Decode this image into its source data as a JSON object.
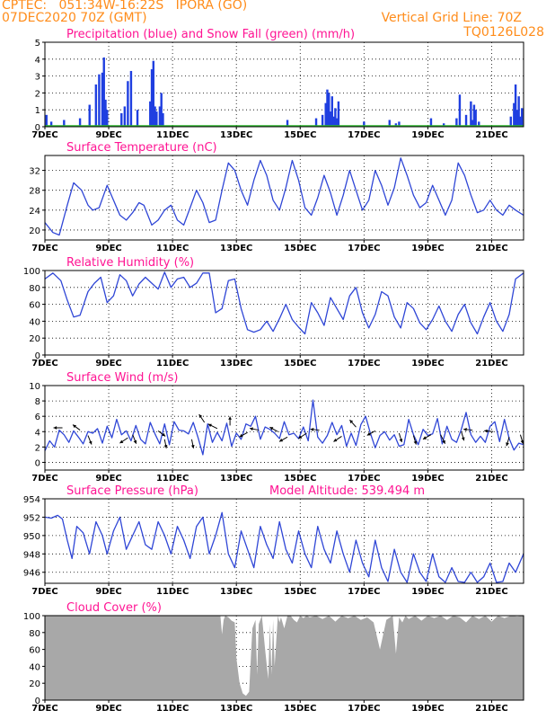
{
  "header": {
    "station": "CPTEC:   051:34W-16:22S   IPORA (GO)",
    "run": "07DEC2020 70Z (GMT)",
    "grid_note": "Vertical Grid Line: 70Z",
    "model": "TQ0126L028"
  },
  "colors": {
    "header": "#ff8c1a",
    "title": "#ff1493",
    "precip": "#1f3fe0",
    "snow": "#2db82d",
    "line": "#2f46d6",
    "cloud": "#a8a8a8"
  },
  "chart_data": [
    {
      "id": "precip",
      "type": "bar",
      "title": "Precipitation (blue) and Snow Fall (green) (mm/h)",
      "ylim": [
        0,
        5
      ],
      "yticks": [
        "0",
        "1",
        "2",
        "3",
        "4",
        "5"
      ],
      "xlim": [
        0,
        15
      ],
      "xticks": [
        "7DEC",
        "9DEC",
        "11DEC",
        "13DEC",
        "15DEC",
        "17DEC",
        "19DEC",
        "21DEC"
      ],
      "x": [
        0.05,
        0.2,
        0.6,
        1.1,
        1.4,
        1.6,
        1.7,
        1.8,
        1.85,
        1.9,
        1.95,
        2.4,
        2.5,
        2.6,
        2.7,
        2.9,
        3.3,
        3.35,
        3.4,
        3.45,
        3.5,
        3.6,
        3.65,
        3.7,
        7.6,
        8.5,
        8.7,
        8.8,
        8.85,
        8.9,
        8.95,
        9.0,
        9.05,
        9.1,
        9.15,
        9.2,
        10.0,
        10.8,
        11.0,
        11.1,
        12.1,
        12.5,
        12.9,
        13.0,
        13.2,
        13.35,
        13.4,
        13.45,
        13.5,
        13.6,
        14.6,
        14.7,
        14.75,
        14.8,
        14.85,
        14.9,
        14.95
      ],
      "values": [
        0.7,
        0.3,
        0.4,
        0.5,
        1.3,
        2.5,
        3.1,
        3.2,
        4.1,
        1.6,
        1.0,
        0.8,
        1.2,
        2.7,
        3.3,
        1.0,
        1.5,
        3.4,
        3.9,
        1.2,
        0.9,
        1.2,
        2.0,
        0.8,
        0.4,
        0.5,
        0.7,
        1.4,
        2.2,
        2.0,
        0.9,
        1.8,
        0.6,
        1.1,
        0.5,
        1.5,
        0.3,
        0.4,
        0.2,
        0.3,
        0.5,
        0.2,
        0.5,
        1.9,
        0.7,
        1.5,
        0.4,
        1.3,
        1.0,
        0.3,
        0.6,
        1.4,
        2.5,
        1.0,
        1.8,
        0.6,
        1.1
      ],
      "snow": 0
    },
    {
      "id": "temperature",
      "type": "line",
      "title": "Surface Temperature (nC)",
      "ylim": [
        18,
        35
      ],
      "yticks": [
        "20",
        "24",
        "28",
        "32"
      ],
      "xlim": [
        0,
        15
      ],
      "xticks": [
        "7DEC",
        "9DEC",
        "11DEC",
        "13DEC",
        "15DEC",
        "17DEC",
        "19DEC",
        "21DEC"
      ],
      "x": [
        0,
        0.25,
        0.45,
        0.7,
        0.9,
        1.15,
        1.35,
        1.5,
        1.7,
        1.95,
        2.15,
        2.35,
        2.55,
        2.75,
        2.95,
        3.1,
        3.35,
        3.55,
        3.75,
        3.95,
        4.15,
        4.35,
        4.55,
        4.75,
        4.95,
        5.15,
        5.35,
        5.55,
        5.75,
        5.95,
        6.15,
        6.35,
        6.55,
        6.75,
        6.95,
        7.15,
        7.35,
        7.55,
        7.75,
        7.95,
        8.15,
        8.35,
        8.55,
        8.75,
        8.95,
        9.15,
        9.35,
        9.55,
        9.75,
        9.95,
        10.15,
        10.35,
        10.55,
        10.75,
        10.95,
        11.15,
        11.35,
        11.55,
        11.75,
        11.95,
        12.15,
        12.35,
        12.55,
        12.75,
        12.95,
        13.15,
        13.35,
        13.55,
        13.75,
        13.95,
        14.15,
        14.35,
        14.55,
        14.75,
        15
      ],
      "values": [
        21.5,
        19.5,
        19.0,
        25.0,
        29.5,
        28.0,
        25.0,
        24.0,
        24.5,
        29.0,
        26.0,
        23.0,
        22.0,
        23.5,
        25.5,
        25.0,
        21.0,
        22.0,
        24.0,
        25.0,
        22.0,
        21.0,
        24.5,
        28.0,
        25.5,
        21.5,
        22.0,
        28.0,
        33.5,
        32.0,
        28.0,
        25.0,
        30.0,
        34.0,
        31.0,
        26.0,
        24.0,
        28.5,
        34.0,
        30.0,
        24.5,
        23.0,
        26.5,
        31.0,
        27.5,
        23.0,
        27.0,
        32.0,
        28.0,
        24.0,
        26.0,
        32.0,
        29.0,
        25.0,
        28.5,
        34.5,
        31.0,
        27.0,
        24.5,
        25.5,
        29.0,
        26.0,
        23.0,
        26.0,
        33.5,
        31.0,
        27.0,
        23.5,
        24.0,
        26.0,
        24.0,
        23.0,
        25.0,
        24.0,
        23.0
      ]
    },
    {
      "id": "humidity",
      "type": "line",
      "title": "Relative Humidity (%)",
      "ylim": [
        0,
        100
      ],
      "yticks": [
        "0",
        "20",
        "40",
        "60",
        "80",
        "100"
      ],
      "xlim": [
        0,
        15
      ],
      "xticks": [
        "7DEC",
        "9DEC",
        "11DEC",
        "13DEC",
        "15DEC",
        "17DEC",
        "19DEC",
        "21DEC"
      ],
      "x": [
        0,
        0.25,
        0.5,
        0.7,
        0.9,
        1.1,
        1.35,
        1.55,
        1.75,
        1.95,
        2.15,
        2.35,
        2.55,
        2.75,
        2.95,
        3.15,
        3.35,
        3.55,
        3.75,
        3.95,
        4.15,
        4.35,
        4.55,
        4.75,
        4.95,
        5.15,
        5.35,
        5.55,
        5.75,
        5.95,
        6.15,
        6.35,
        6.55,
        6.75,
        6.95,
        7.15,
        7.35,
        7.55,
        7.75,
        7.95,
        8.15,
        8.35,
        8.55,
        8.75,
        8.95,
        9.15,
        9.35,
        9.55,
        9.75,
        9.95,
        10.15,
        10.35,
        10.55,
        10.75,
        10.95,
        11.15,
        11.35,
        11.55,
        11.75,
        11.95,
        12.15,
        12.35,
        12.55,
        12.75,
        12.95,
        13.15,
        13.35,
        13.55,
        13.75,
        13.95,
        14.15,
        14.35,
        14.55,
        14.75,
        15
      ],
      "values": [
        90,
        97,
        88,
        65,
        45,
        47,
        75,
        85,
        92,
        62,
        70,
        95,
        88,
        70,
        84,
        92,
        85,
        78,
        98,
        80,
        90,
        92,
        80,
        85,
        97,
        97,
        50,
        55,
        88,
        90,
        55,
        30,
        27,
        30,
        40,
        28,
        43,
        60,
        42,
        33,
        25,
        62,
        50,
        35,
        68,
        55,
        42,
        70,
        80,
        50,
        32,
        48,
        75,
        70,
        45,
        32,
        62,
        55,
        38,
        30,
        42,
        58,
        40,
        28,
        48,
        60,
        38,
        25,
        45,
        62,
        40,
        28,
        48,
        90,
        97
      ]
    },
    {
      "id": "wind",
      "type": "line",
      "title": "Surface Wind (m/s)",
      "ylim": [
        -1,
        10
      ],
      "yticks": [
        "0",
        "2",
        "4",
        "6",
        "8",
        "10"
      ],
      "xlim": [
        0,
        15
      ],
      "xticks": [
        "7DEC",
        "9DEC",
        "11DEC",
        "13DEC",
        "15DEC",
        "17DEC",
        "19DEC",
        "21DEC"
      ],
      "x": [
        0,
        0.15,
        0.3,
        0.45,
        0.6,
        0.75,
        0.9,
        1.05,
        1.2,
        1.35,
        1.5,
        1.65,
        1.8,
        1.95,
        2.1,
        2.25,
        2.4,
        2.55,
        2.7,
        2.85,
        3.0,
        3.15,
        3.3,
        3.45,
        3.6,
        3.75,
        3.9,
        4.05,
        4.2,
        4.35,
        4.5,
        4.65,
        4.8,
        4.95,
        5.1,
        5.25,
        5.4,
        5.55,
        5.7,
        5.85,
        6.0,
        6.15,
        6.3,
        6.45,
        6.6,
        6.75,
        6.9,
        7.05,
        7.2,
        7.35,
        7.5,
        7.65,
        7.8,
        7.95,
        8.1,
        8.25,
        8.4,
        8.55,
        8.7,
        8.85,
        9.0,
        9.15,
        9.3,
        9.45,
        9.6,
        9.75,
        9.9,
        10.05,
        10.2,
        10.35,
        10.5,
        10.65,
        10.8,
        10.95,
        11.1,
        11.25,
        11.4,
        11.55,
        11.7,
        11.85,
        12.0,
        12.15,
        12.3,
        12.45,
        12.6,
        12.75,
        12.9,
        13.05,
        13.2,
        13.35,
        13.5,
        13.65,
        13.8,
        13.95,
        14.1,
        14.25,
        14.4,
        14.55,
        14.7,
        14.85,
        15
      ],
      "values": [
        1.5,
        2.8,
        2.0,
        4.2,
        3.6,
        2.6,
        4.1,
        3.3,
        2.4,
        4.0,
        3.8,
        4.4,
        2.5,
        4.7,
        3.2,
        5.6,
        3.6,
        4.1,
        2.8,
        4.8,
        3.0,
        2.4,
        5.2,
        3.7,
        2.4,
        5.0,
        2.3,
        5.3,
        4.2,
        4.1,
        3.7,
        5.2,
        3.2,
        1.0,
        5.0,
        2.6,
        3.9,
        2.8,
        5.1,
        2.1,
        3.8,
        3.0,
        5.0,
        4.7,
        6.0,
        3.0,
        4.6,
        4.3,
        3.8,
        3.1,
        5.3,
        3.6,
        3.8,
        3.1,
        4.6,
        2.8,
        8.1,
        3.3,
        2.5,
        3.5,
        5.2,
        3.6,
        4.8,
        2.1,
        3.8,
        2.2,
        4.9,
        6.0,
        3.8,
        1.9,
        3.5,
        4.0,
        2.9,
        3.6,
        2.1,
        2.3,
        5.6,
        3.6,
        2.3,
        4.3,
        3.5,
        3.7,
        5.7,
        2.4,
        4.7,
        3.0,
        2.6,
        4.3,
        6.5,
        3.6,
        2.6,
        3.4,
        2.6,
        4.7,
        5.3,
        2.7,
        5.6,
        3.1,
        1.6,
        2.5,
        2.3
      ],
      "arrows": [
        {
          "x": 0.55,
          "y": 4.5,
          "dx": -1,
          "dy": 0
        },
        {
          "x": 1.1,
          "y": 4.2,
          "dx": -0.8,
          "dy": 0.6
        },
        {
          "x": 1.35,
          "y": 3.5,
          "dx": 0.4,
          "dy": -1
        },
        {
          "x": 2.6,
          "y": 3.2,
          "dx": -0.9,
          "dy": -0.6
        },
        {
          "x": 2.75,
          "y": 3.6,
          "dx": 0.4,
          "dy": -1
        },
        {
          "x": 3.55,
          "y": 4.1,
          "dx": 0.8,
          "dy": -0.6
        },
        {
          "x": 3.75,
          "y": 3.0,
          "dx": 0.2,
          "dy": -1
        },
        {
          "x": 4.6,
          "y": 3.0,
          "dx": 0.2,
          "dy": -1
        },
        {
          "x": 5.0,
          "y": 5.2,
          "dx": -0.6,
          "dy": 0.9
        },
        {
          "x": 5.4,
          "y": 4.4,
          "dx": -1,
          "dy": 0.5
        },
        {
          "x": 5.8,
          "y": 4.8,
          "dx": 0,
          "dy": 1
        },
        {
          "x": 6.35,
          "y": 3.9,
          "dx": -0.9,
          "dy": -0.5
        },
        {
          "x": 6.7,
          "y": 4.2,
          "dx": -1,
          "dy": 0.2
        },
        {
          "x": 7.3,
          "y": 4.0,
          "dx": -0.9,
          "dy": 0.5
        },
        {
          "x": 7.6,
          "y": 3.3,
          "dx": -0.9,
          "dy": -0.5
        },
        {
          "x": 8.2,
          "y": 3.8,
          "dx": -0.9,
          "dy": -0.6
        },
        {
          "x": 8.6,
          "y": 4.2,
          "dx": -1,
          "dy": 0.1
        },
        {
          "x": 9.3,
          "y": 3.4,
          "dx": -0.9,
          "dy": -0.6
        },
        {
          "x": 9.75,
          "y": 4.6,
          "dx": -0.7,
          "dy": 0.8
        },
        {
          "x": 10.35,
          "y": 4.1,
          "dx": -0.9,
          "dy": -0.5
        },
        {
          "x": 11.1,
          "y": 3.8,
          "dx": 0.3,
          "dy": -1
        },
        {
          "x": 11.55,
          "y": 3.5,
          "dx": 0.3,
          "dy": -1
        },
        {
          "x": 12.1,
          "y": 3.6,
          "dx": -0.9,
          "dy": -0.5
        },
        {
          "x": 12.4,
          "y": 3.6,
          "dx": 0.5,
          "dy": -1
        },
        {
          "x": 13.05,
          "y": 4.0,
          "dx": 0.3,
          "dy": -1
        },
        {
          "x": 13.4,
          "y": 4.2,
          "dx": -1,
          "dy": 0.1
        },
        {
          "x": 14.05,
          "y": 4.0,
          "dx": -1,
          "dy": 0.1
        },
        {
          "x": 14.55,
          "y": 3.3,
          "dx": -0.3,
          "dy": -1
        },
        {
          "x": 14.9,
          "y": 3.6,
          "dx": 0.3,
          "dy": -1
        }
      ]
    },
    {
      "id": "pressure",
      "type": "line",
      "title": "Surface Pressure (hPa)",
      "annotation": "Model Altitude: 539.494  m",
      "ylim": [
        944.8,
        954
      ],
      "yticks": [
        "946",
        "948",
        "950",
        "952",
        "954"
      ],
      "xlim": [
        0,
        15
      ],
      "xticks": [
        "7DEC",
        "9DEC",
        "11DEC",
        "13DEC",
        "15DEC",
        "17DEC",
        "19DEC",
        "21DEC"
      ],
      "x": [
        0,
        0.2,
        0.4,
        0.55,
        0.7,
        0.85,
        1.0,
        1.2,
        1.4,
        1.6,
        1.8,
        1.95,
        2.15,
        2.35,
        2.55,
        2.75,
        2.95,
        3.15,
        3.35,
        3.55,
        3.75,
        3.95,
        4.15,
        4.35,
        4.55,
        4.75,
        4.95,
        5.15,
        5.35,
        5.55,
        5.75,
        5.95,
        6.15,
        6.35,
        6.55,
        6.75,
        6.95,
        7.15,
        7.35,
        7.55,
        7.75,
        7.95,
        8.15,
        8.35,
        8.55,
        8.75,
        8.95,
        9.15,
        9.35,
        9.55,
        9.75,
        9.95,
        10.15,
        10.35,
        10.55,
        10.75,
        10.95,
        11.15,
        11.35,
        11.55,
        11.75,
        11.95,
        12.15,
        12.35,
        12.55,
        12.75,
        12.95,
        13.15,
        13.35,
        13.55,
        13.75,
        13.95,
        14.15,
        14.35,
        14.55,
        14.75,
        15
      ],
      "values": [
        952,
        951.9,
        952.2,
        951.8,
        949.5,
        947.5,
        951.0,
        950.3,
        948.0,
        951.5,
        950.0,
        948.0,
        950.5,
        952.0,
        948.5,
        950.0,
        951.5,
        949.0,
        948.5,
        951.5,
        950.0,
        948.0,
        951.0,
        949.5,
        947.5,
        951.0,
        952.0,
        948.0,
        950.0,
        952.5,
        948.0,
        946.5,
        950.5,
        948.5,
        946.5,
        951.0,
        949.0,
        947.5,
        951.5,
        948.5,
        947.0,
        950.5,
        948.0,
        946.5,
        951.0,
        948.5,
        947.0,
        950.5,
        948.0,
        946.0,
        949.5,
        947.0,
        945.5,
        949.5,
        946.5,
        945.0,
        948.5,
        946.0,
        944.9,
        948.0,
        946.0,
        945.0,
        948.0,
        945.5,
        944.9,
        946.5,
        945.0,
        944.9,
        946.0,
        944.9,
        945.5,
        947.0,
        944.9,
        945.0,
        947.0,
        946.0,
        948.0
      ]
    },
    {
      "id": "cloud",
      "type": "area",
      "title": "Cloud Cover (%)",
      "ylim": [
        0,
        100
      ],
      "yticks": [
        "0",
        "20",
        "40",
        "60",
        "80",
        "100"
      ],
      "xlim": [
        0,
        15
      ],
      "xticks": [
        "7DEC",
        "9DEC",
        "11DEC",
        "13DEC",
        "15DEC",
        "17DEC",
        "19DEC",
        "21DEC"
      ],
      "x": [
        0,
        5.5,
        5.55,
        5.6,
        5.65,
        5.75,
        5.85,
        5.95,
        6.0,
        6.1,
        6.2,
        6.3,
        6.4,
        6.5,
        6.6,
        6.65,
        6.7,
        6.8,
        6.9,
        7.0,
        7.05,
        7.1,
        7.15,
        7.2,
        7.3,
        7.35,
        7.4,
        7.5,
        7.6,
        7.7,
        7.8,
        7.9,
        8.0,
        8.1,
        8.2,
        8.3,
        8.5,
        8.7,
        8.9,
        9.1,
        9.3,
        9.5,
        9.7,
        9.9,
        10.1,
        10.3,
        10.5,
        10.7,
        10.9,
        11.0,
        11.1,
        11.2,
        11.3,
        11.4,
        11.6,
        11.8,
        12.0,
        12.2,
        12.4,
        12.6,
        12.8,
        13.0,
        13.2,
        13.4,
        13.6,
        13.8,
        14.0,
        14.2,
        14.4,
        14.6,
        14.8,
        15
      ],
      "values": [
        100,
        100,
        78,
        95,
        100,
        98,
        94,
        92,
        50,
        20,
        8,
        5,
        10,
        85,
        95,
        30,
        90,
        100,
        60,
        25,
        90,
        30,
        95,
        40,
        100,
        92,
        98,
        85,
        100,
        100,
        95,
        92,
        100,
        97,
        100,
        98,
        100,
        96,
        100,
        93,
        100,
        97,
        100,
        95,
        98,
        92,
        60,
        95,
        100,
        55,
        98,
        92,
        100,
        96,
        100,
        94,
        100,
        97,
        100,
        95,
        100,
        98,
        92,
        100,
        96,
        100,
        93,
        100,
        97,
        100,
        99,
        100
      ]
    }
  ]
}
